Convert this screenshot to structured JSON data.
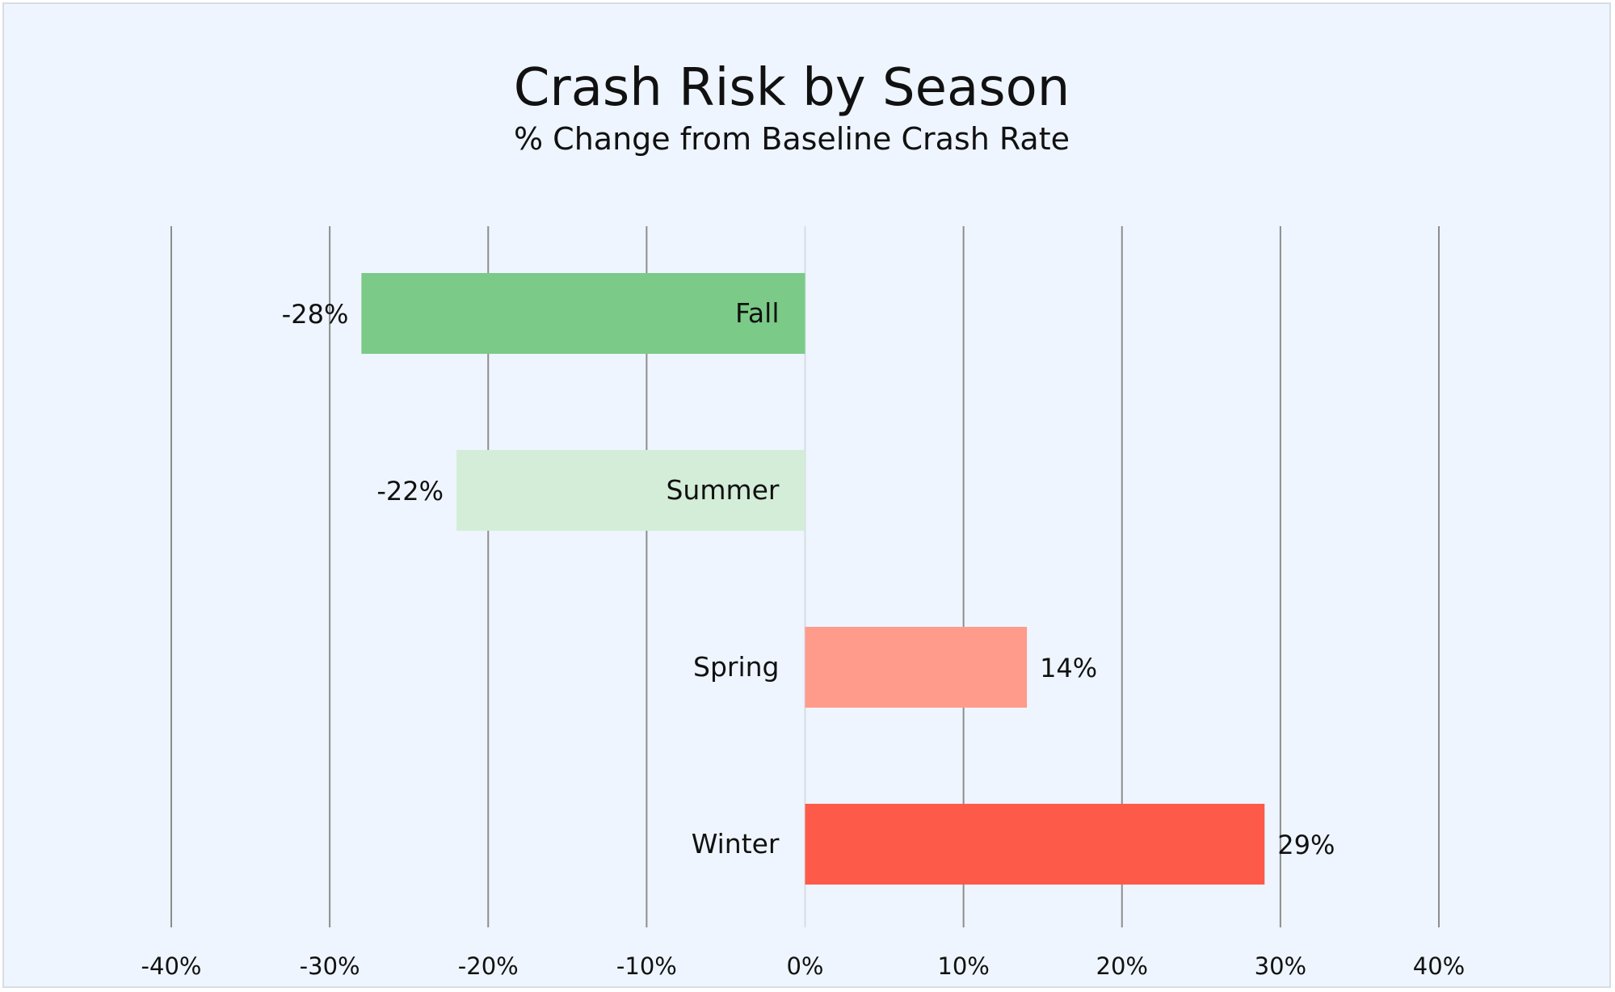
{
  "chart_data": {
    "type": "bar",
    "orientation": "horizontal",
    "title": "Crash Risk by Season",
    "subtitle": "% Change from Baseline Crash Rate",
    "categories": [
      "Fall",
      "Summer",
      "Spring",
      "Winter"
    ],
    "values": [
      -28,
      -22,
      14,
      29
    ],
    "value_labels": [
      "-28%",
      "-22%",
      "14%",
      "29%"
    ],
    "colors": [
      "#7bca88",
      "#d4edd8",
      "#fe9b8b",
      "#fe5a4a"
    ],
    "xlim": [
      -40,
      40
    ],
    "x_ticks": [
      -40,
      -30,
      -20,
      -10,
      0,
      10,
      20,
      30,
      40
    ],
    "x_tick_labels": [
      "-40%",
      "-30%",
      "-20%",
      "-10%",
      "0%",
      "10%",
      "20%",
      "30%",
      "40%"
    ],
    "grid": true,
    "legend": "none"
  }
}
